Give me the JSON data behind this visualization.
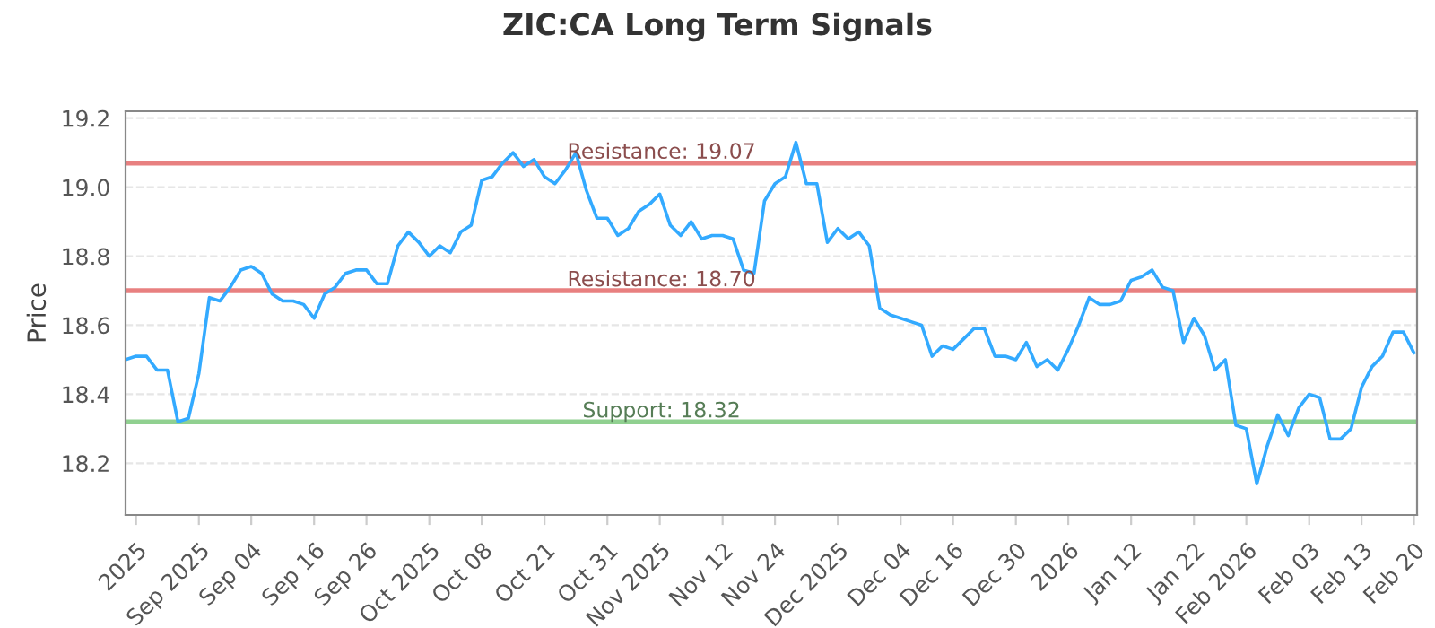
{
  "chart_data": {
    "type": "line",
    "title": "ZIC:CA Long Term Signals",
    "ylabel": "Price",
    "categories": [
      null,
      "2025",
      null,
      null,
      null,
      null,
      null,
      "Sep 2025",
      null,
      null,
      null,
      null,
      "Sep 04",
      null,
      null,
      null,
      null,
      null,
      "Sep 16",
      null,
      null,
      null,
      null,
      "Sep 26",
      null,
      null,
      null,
      null,
      null,
      "Oct 2025",
      null,
      null,
      null,
      null,
      "Oct 08",
      null,
      null,
      null,
      null,
      null,
      "Oct 21",
      null,
      null,
      null,
      null,
      null,
      "Oct 31",
      null,
      null,
      null,
      null,
      "Nov 2025",
      null,
      null,
      null,
      null,
      null,
      "Nov 12",
      null,
      null,
      null,
      null,
      "Nov 24",
      null,
      null,
      null,
      null,
      null,
      "Dec 2025",
      null,
      null,
      null,
      null,
      null,
      "Dec 04",
      null,
      null,
      null,
      null,
      "Dec 16",
      null,
      null,
      null,
      null,
      null,
      "Dec 30",
      null,
      null,
      null,
      null,
      "2026",
      null,
      null,
      null,
      null,
      null,
      "Jan 12",
      null,
      null,
      null,
      null,
      null,
      "Jan 22",
      null,
      null,
      null,
      null,
      "Feb 2026",
      null,
      null,
      null,
      null,
      null,
      "Feb 03",
      null,
      null,
      null,
      null,
      "Feb 13",
      null,
      null,
      null,
      null,
      "Feb 20"
    ],
    "series": [
      {
        "color": "#33aaff",
        "values": [
          18.5,
          18.51,
          18.51,
          18.47,
          18.47,
          18.32,
          18.33,
          18.46,
          18.68,
          18.67,
          18.71,
          18.76,
          18.77,
          18.75,
          18.69,
          18.67,
          18.67,
          18.66,
          18.62,
          18.69,
          18.71,
          18.75,
          18.76,
          18.76,
          18.72,
          18.72,
          18.83,
          18.87,
          18.84,
          18.8,
          18.83,
          18.81,
          18.87,
          18.89,
          19.02,
          19.03,
          19.07,
          19.1,
          19.06,
          19.08,
          19.03,
          19.01,
          19.05,
          19.1,
          18.99,
          18.91,
          18.91,
          18.86,
          18.88,
          18.93,
          18.95,
          18.98,
          18.89,
          18.86,
          18.9,
          18.85,
          18.86,
          18.86,
          18.85,
          18.76,
          18.75,
          18.96,
          19.01,
          19.03,
          19.13,
          19.01,
          19.01,
          18.84,
          18.88,
          18.85,
          18.87,
          18.83,
          18.65,
          18.63,
          18.62,
          18.61,
          18.6,
          18.51,
          18.54,
          18.53,
          18.56,
          18.59,
          18.59,
          18.51,
          18.51,
          18.5,
          18.55,
          18.48,
          18.5,
          18.47,
          18.53,
          18.6,
          18.68,
          18.66,
          18.66,
          18.67,
          18.73,
          18.74,
          18.76,
          18.71,
          18.7,
          18.55,
          18.62,
          18.57,
          18.47,
          18.5,
          18.31,
          18.3,
          18.14,
          18.25,
          18.34,
          18.28,
          18.36,
          18.4,
          18.39,
          18.27,
          18.27,
          18.3,
          18.42,
          18.48,
          18.51,
          18.58,
          18.58,
          18.52
        ]
      }
    ],
    "ylim": [
      18.05,
      19.22
    ],
    "yticks": [
      {
        "value": 18.2,
        "label": "18.2"
      },
      {
        "value": 18.4,
        "label": "18.4"
      },
      {
        "value": 18.6,
        "label": "18.6"
      },
      {
        "value": 18.8,
        "label": "18.8"
      },
      {
        "value": 19.0,
        "label": "19.0"
      },
      {
        "value": 19.2,
        "label": "19.2"
      }
    ],
    "grid": "y",
    "marker": "none",
    "line_style": "solid",
    "ref_lines": [
      {
        "axis": "y",
        "value": 19.07,
        "label": "Resistance: 19.07",
        "color": "#e88080"
      },
      {
        "axis": "y",
        "value": 18.7,
        "label": "Resistance: 18.70",
        "color": "#e88080"
      },
      {
        "axis": "y",
        "value": 18.32,
        "label": "Support: 18.32",
        "color": "#90d090"
      }
    ]
  }
}
